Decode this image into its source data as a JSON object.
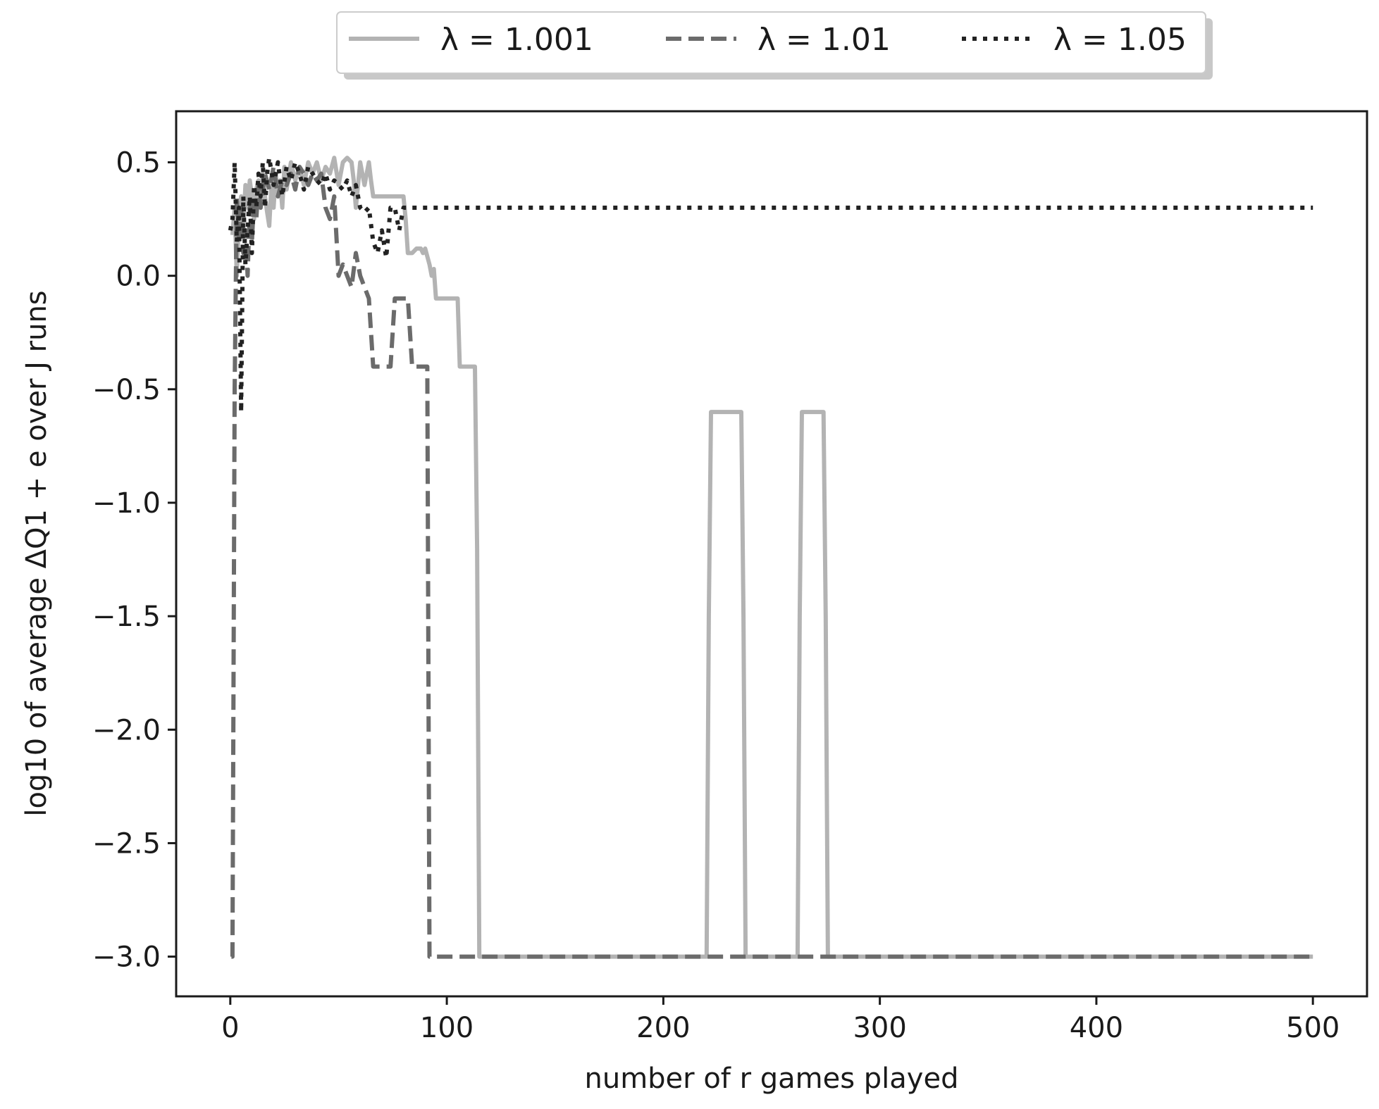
{
  "chart_data": {
    "type": "line",
    "xlabel": "number of r games played",
    "ylabel": "log10 of average ΔQ1 + e over J runs",
    "xlim": [
      -25,
      525
    ],
    "ylim": [
      -3.175,
      0.725
    ],
    "xticks": [
      0,
      100,
      200,
      300,
      400,
      500
    ],
    "yticks": [
      0.5,
      0.0,
      -0.5,
      -1.0,
      -1.5,
      -2.0,
      -2.5,
      -3.0
    ],
    "xtick_labels": [
      "0",
      "100",
      "200",
      "300",
      "400",
      "500"
    ],
    "ytick_labels": [
      "0.5",
      "0.0",
      "−0.5",
      "−1.0",
      "−1.5",
      "−2.0",
      "−2.5",
      "−3.0"
    ],
    "grid": false,
    "legend_position": "top-center, above plot",
    "legend_labels": [
      "λ = 1.001",
      "λ = 1.01",
      "λ = 1.05"
    ],
    "series": [
      {
        "name": "λ = 1.001",
        "color": "#b3b3b3",
        "style": "solid",
        "x": [
          1,
          2,
          3,
          4,
          5,
          6,
          7,
          8,
          9,
          10,
          11,
          12,
          13,
          14,
          15,
          16,
          17,
          18,
          19,
          20,
          21,
          22,
          23,
          24,
          25,
          26,
          28,
          30,
          32,
          34,
          36,
          38,
          40,
          42,
          44,
          46,
          48,
          50,
          52,
          54,
          56,
          57,
          58,
          60,
          62,
          64,
          65,
          66,
          70,
          76,
          80,
          81,
          82,
          84,
          86,
          88,
          89,
          90,
          92,
          93,
          94,
          95,
          105,
          106,
          112,
          113,
          114,
          115,
          220,
          221,
          222,
          236,
          237,
          238,
          262,
          263,
          264,
          274,
          275,
          276,
          500
        ],
        "y": [
          0.18,
          0.3,
          0.0,
          0.25,
          0.35,
          0.2,
          0.4,
          0.3,
          0.42,
          0.35,
          0.25,
          0.38,
          0.42,
          0.3,
          0.45,
          0.35,
          0.28,
          0.22,
          0.4,
          0.3,
          0.45,
          0.35,
          0.42,
          0.3,
          0.48,
          0.38,
          0.5,
          0.42,
          0.48,
          0.4,
          0.5,
          0.45,
          0.5,
          0.42,
          0.48,
          0.45,
          0.52,
          0.4,
          0.5,
          0.52,
          0.5,
          0.42,
          0.3,
          0.5,
          0.4,
          0.5,
          0.42,
          0.35,
          0.35,
          0.35,
          0.35,
          0.25,
          0.1,
          0.1,
          0.12,
          0.12,
          0.1,
          0.12,
          0.05,
          0.0,
          0.03,
          -0.1,
          -0.1,
          -0.4,
          -0.4,
          -0.4,
          -1.2,
          -3.0,
          -3.0,
          -1.5,
          -0.6,
          -0.6,
          -1.5,
          -3.0,
          -3.0,
          -1.5,
          -0.6,
          -0.6,
          -1.5,
          -3.0,
          -3.0
        ]
      },
      {
        "name": "λ = 1.01",
        "color": "#6b6b6b",
        "style": "dashed",
        "x": [
          0.5,
          1,
          2,
          3,
          4,
          5,
          6,
          7,
          8,
          9,
          10,
          11,
          12,
          13,
          14,
          16,
          18,
          20,
          22,
          24,
          26,
          28,
          30,
          32,
          34,
          36,
          38,
          40,
          42,
          44,
          46,
          48,
          50,
          52,
          54,
          56,
          58,
          60,
          62,
          64,
          66,
          68,
          70,
          72,
          74,
          76,
          78,
          80,
          82,
          84,
          86,
          88,
          90,
          91,
          92,
          93,
          500
        ],
        "y": [
          -3.0,
          -3.0,
          -0.5,
          0.35,
          0.15,
          0.3,
          0.1,
          0.2,
          0.0,
          0.3,
          0.15,
          0.35,
          0.25,
          0.4,
          0.3,
          0.45,
          0.38,
          0.48,
          0.35,
          0.42,
          0.4,
          0.45,
          0.38,
          0.48,
          0.45,
          0.4,
          0.45,
          0.42,
          0.45,
          0.3,
          0.25,
          0.35,
          0.0,
          0.05,
          0.0,
          -0.05,
          0.1,
          0.0,
          -0.05,
          -0.1,
          -0.4,
          -0.4,
          -0.4,
          -0.4,
          -0.4,
          -0.1,
          -0.1,
          -0.1,
          -0.1,
          -0.4,
          -0.4,
          -0.4,
          -0.4,
          -0.4,
          -3.0,
          -3.0,
          -3.0
        ]
      },
      {
        "name": "λ = 1.05",
        "color": "#222222",
        "style": "dotted",
        "x": [
          0,
          1,
          2,
          3,
          4,
          5,
          6,
          7,
          8,
          9,
          10,
          11,
          12,
          13,
          14,
          15,
          16,
          17,
          18,
          20,
          22,
          24,
          26,
          28,
          30,
          32,
          34,
          36,
          38,
          40,
          42,
          44,
          46,
          48,
          50,
          52,
          54,
          56,
          58,
          60,
          62,
          64,
          66,
          68,
          70,
          72,
          74,
          76,
          78,
          80,
          500
        ],
        "y": [
          0.2,
          0.25,
          0.5,
          0.15,
          0.3,
          -0.6,
          0.35,
          0.05,
          0.2,
          0.35,
          0.1,
          0.4,
          0.3,
          0.45,
          0.35,
          0.5,
          0.3,
          0.45,
          0.52,
          0.4,
          0.5,
          0.35,
          0.48,
          0.42,
          0.5,
          0.45,
          0.38,
          0.48,
          0.45,
          0.42,
          0.4,
          0.45,
          0.38,
          0.42,
          0.4,
          0.38,
          0.42,
          0.35,
          0.4,
          0.3,
          0.28,
          0.3,
          0.15,
          0.1,
          0.2,
          0.08,
          0.3,
          0.3,
          0.2,
          0.3,
          0.3
        ]
      }
    ]
  }
}
